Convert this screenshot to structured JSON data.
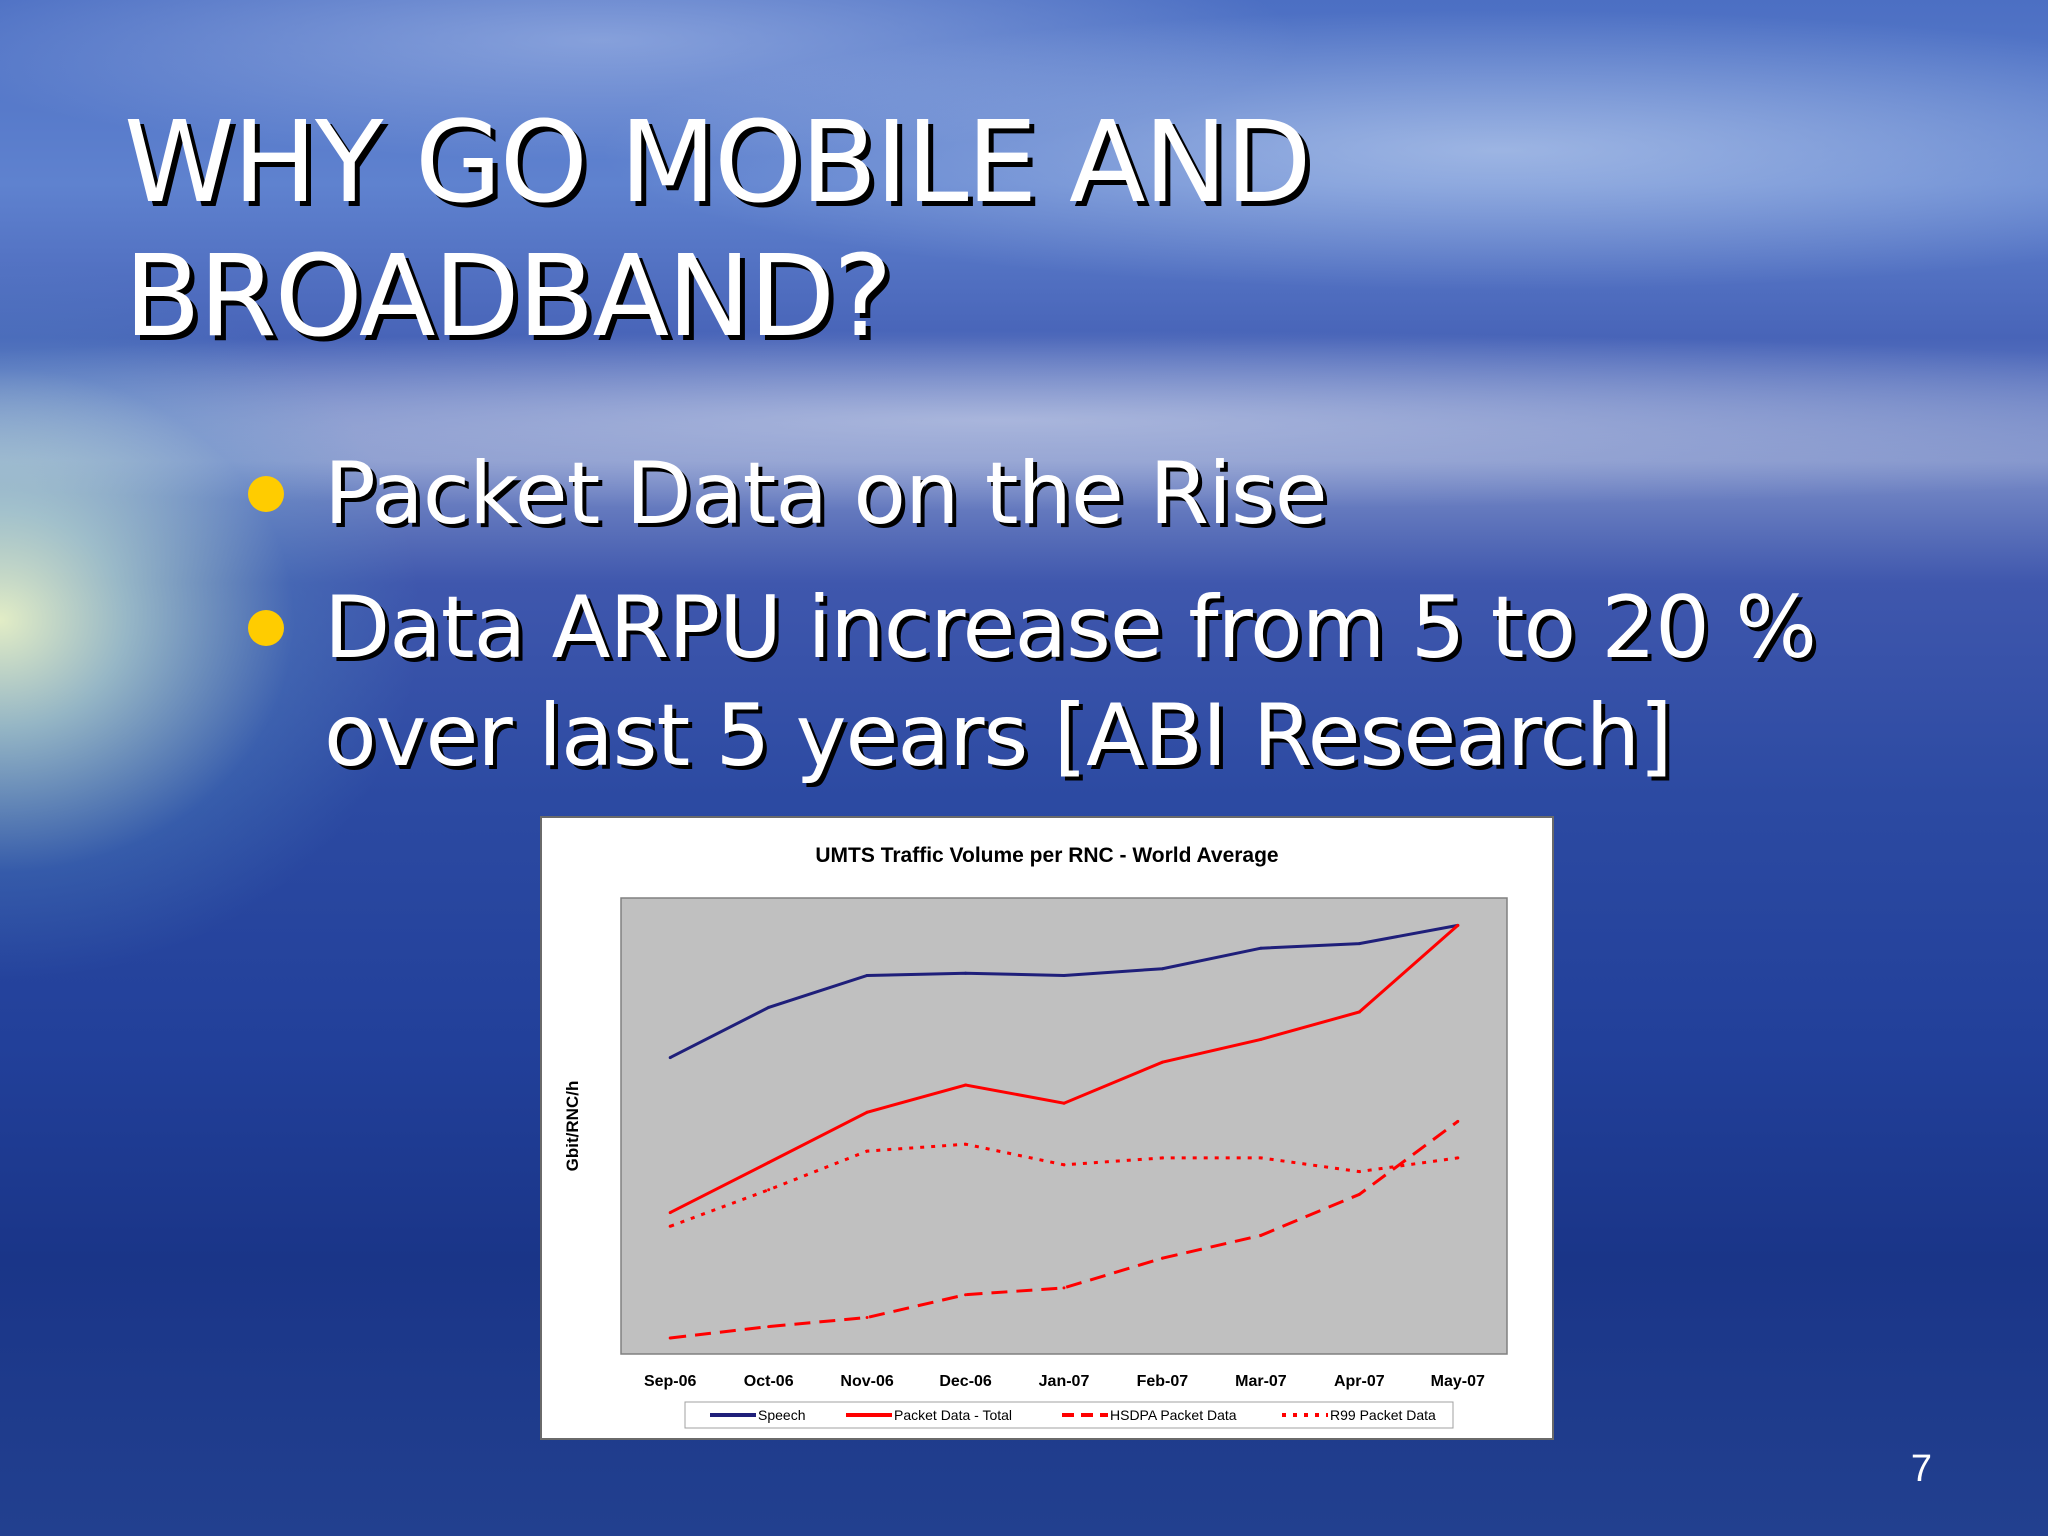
{
  "slide": {
    "title_line1": "WHY GO  MOBILE AND",
    "title_line2": "BROADBAND?",
    "bullets": [
      "Packet Data on the Rise",
      "Data ARPU increase from 5 to 20 % over last 5 years [ABI Research]"
    ],
    "page_number": "7"
  },
  "colors": {
    "bullet": "#ffcc00",
    "speech": "#1f1f7a",
    "packet": "#ff0000",
    "plot_area": "#c0c0c0"
  },
  "chart_data": {
    "type": "line",
    "title": "UMTS Traffic Volume per RNC - World Average",
    "xlabel": "",
    "ylabel": "Gbit/RNC/h",
    "ylim": [
      0,
      100
    ],
    "grid": false,
    "legend": "bottom",
    "categories": [
      "Sep-06",
      "Oct-06",
      "Nov-06",
      "Dec-06",
      "Jan-07",
      "Feb-07",
      "Mar-07",
      "Apr-07",
      "May-07"
    ],
    "series": [
      {
        "name": "Speech",
        "color": "#1f1f7a",
        "style": "solid",
        "values": [
          65,
          76,
          83,
          83.5,
          83,
          84.5,
          89,
          90,
          94
        ]
      },
      {
        "name": "Packet Data - Total",
        "color": "#ff0000",
        "style": "solid",
        "values": [
          31,
          42,
          53,
          59,
          55,
          64,
          69,
          75,
          94
        ]
      },
      {
        "name": "HSDPA Packet Data",
        "color": "#ff0000",
        "style": "dashed",
        "values": [
          3.5,
          6,
          8,
          13,
          14.5,
          21,
          26,
          35,
          51
        ]
      },
      {
        "name": "R99 Packet Data",
        "color": "#ff0000",
        "style": "dotted",
        "values": [
          28,
          36,
          44.5,
          46,
          41.5,
          43,
          43,
          40,
          43
        ]
      }
    ]
  }
}
